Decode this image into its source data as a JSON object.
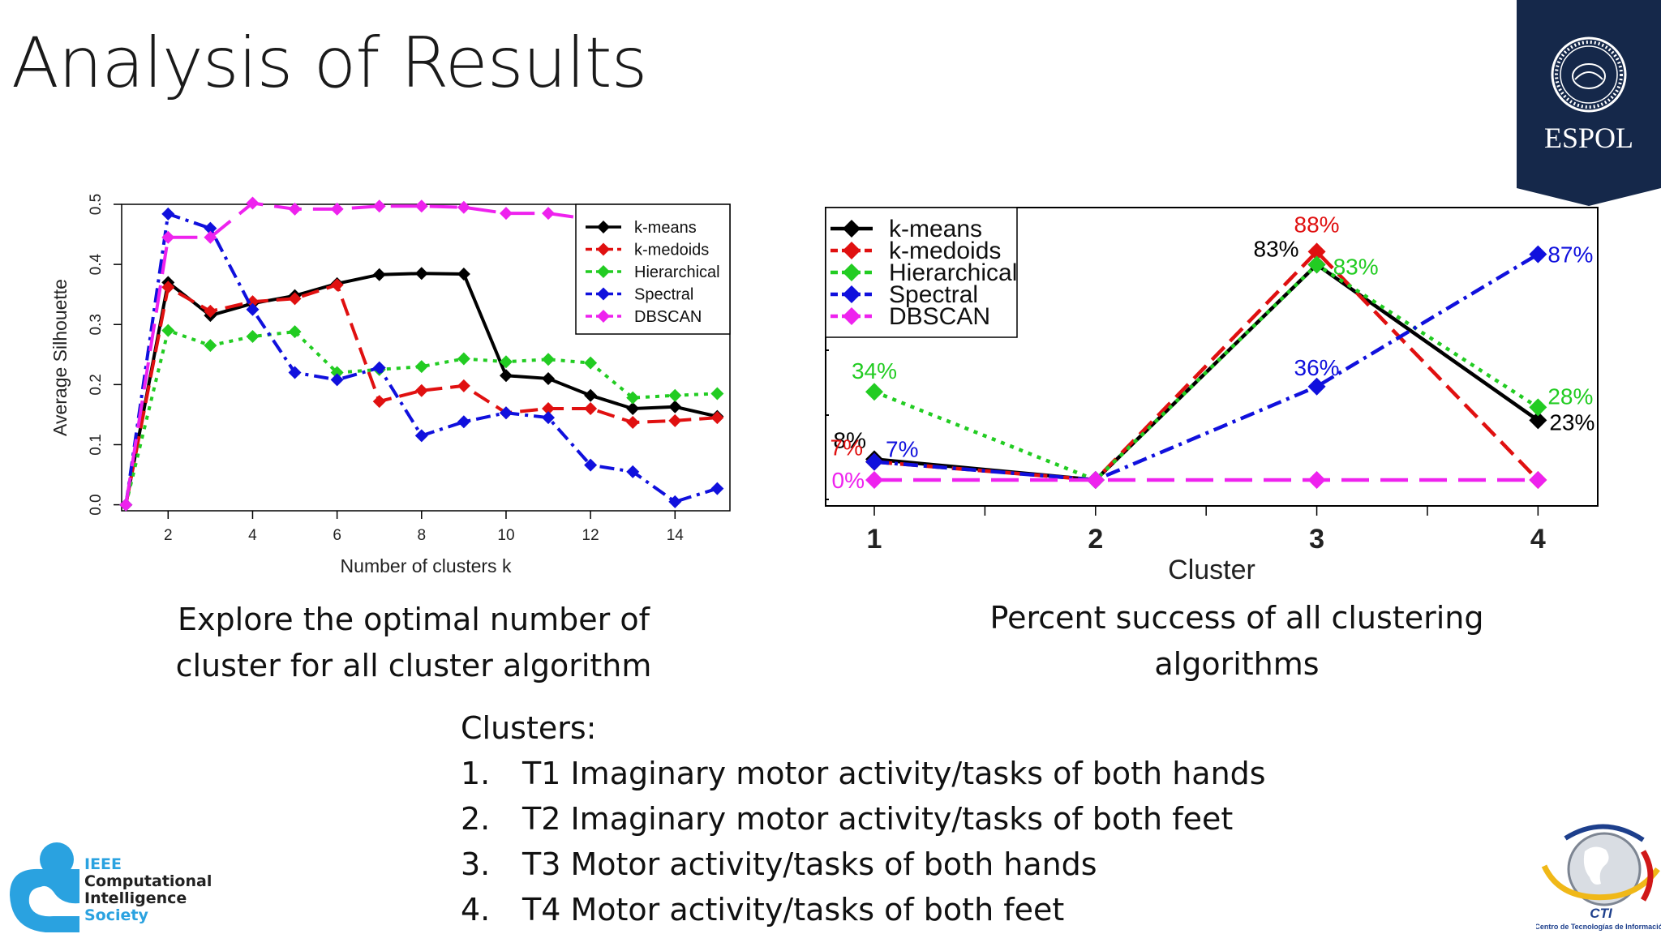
{
  "slide": {
    "title": "Analysis of Results",
    "caption_left": [
      "Explore the optimal number of",
      "cluster for all cluster algorithm"
    ],
    "caption_right": [
      "Percent success of all clustering",
      "algorithms"
    ],
    "clusters_heading": "Clusters:",
    "clusters": [
      {
        "num": "1.",
        "text": "T1 Imaginary motor activity/tasks of both hands"
      },
      {
        "num": "2.",
        "text": "T2 Imaginary motor activity/tasks of both feet"
      },
      {
        "num": "3.",
        "text": "T3 Motor activity/tasks of both hands"
      },
      {
        "num": "4.",
        "text": "T4 Motor activity/tasks of both feet"
      }
    ],
    "logos": {
      "espol": "ESPOL",
      "ieee": [
        "IEEE",
        "Computational",
        "Intelligence",
        "Society"
      ],
      "cti": "CTI",
      "cti_sub": "Centro de Tecnologías de Información"
    },
    "colors": {
      "espol_navy": "#15284a",
      "ieee_blue": "#2aa2e0"
    }
  },
  "chart_data": [
    {
      "type": "line",
      "xlabel": "Number of clusters k",
      "ylabel": "Average Silhouette",
      "xlim": [
        0.9,
        15.3
      ],
      "ylim": [
        -0.01,
        0.5
      ],
      "xticks": [
        2,
        4,
        6,
        8,
        10,
        12,
        14
      ],
      "yticks": [
        0.0,
        0.1,
        0.2,
        0.3,
        0.4,
        0.5
      ],
      "grid": false,
      "legend": "top-right",
      "x": [
        1,
        2,
        3,
        4,
        5,
        6,
        7,
        8,
        9,
        10,
        11,
        12,
        13,
        14,
        15
      ],
      "series": [
        {
          "name": "k-means",
          "color": "#000000",
          "dash": "solid",
          "values": [
            0,
            0.37,
            0.315,
            0.335,
            0.348,
            0.368,
            0.383,
            0.385,
            0.384,
            0.215,
            0.21,
            0.182,
            0.16,
            0.163,
            0.147
          ]
        },
        {
          "name": "k-medoids",
          "color": "#e01010",
          "dash": "long",
          "values": [
            0,
            0.362,
            0.322,
            0.338,
            0.343,
            0.366,
            0.172,
            0.19,
            0.198,
            0.153,
            0.16,
            0.16,
            0.137,
            0.14,
            0.145
          ]
        },
        {
          "name": "Hierarchical",
          "color": "#22cc22",
          "dash": "dot",
          "values": [
            0,
            0.29,
            0.265,
            0.28,
            0.288,
            0.22,
            0.225,
            0.23,
            0.243,
            0.238,
            0.242,
            0.236,
            0.178,
            0.182,
            0.185
          ]
        },
        {
          "name": "Spectral",
          "color": "#1010dd",
          "dash": "dashdot",
          "values": [
            0,
            0.484,
            0.46,
            0.325,
            0.22,
            0.208,
            0.228,
            0.115,
            0.138,
            0.153,
            0.145,
            0.066,
            0.055,
            0.005,
            0.027
          ]
        },
        {
          "name": "DBSCAN",
          "color": "#ee22ee",
          "dash": "longdash",
          "values": [
            0,
            0.445,
            0.445,
            0.502,
            0.492,
            0.492,
            0.497,
            0.497,
            0.495,
            0.485,
            0.485,
            0.475,
            0.475,
            0.475,
            0.475
          ]
        }
      ]
    },
    {
      "type": "line",
      "xlabel": "Cluster",
      "ylabel": "",
      "xlim": [
        0.78,
        4.27
      ],
      "ylim": [
        -0.1,
        1.05
      ],
      "xticks": [
        1,
        2,
        3,
        4
      ],
      "grid": false,
      "legend": "top-left",
      "x": [
        1,
        2,
        3,
        4
      ],
      "series": [
        {
          "name": "k-means",
          "color": "#000000",
          "dash": "solid",
          "values": [
            0.08,
            0,
            0.83,
            0.23
          ],
          "labels": [
            "8%",
            "",
            "83%",
            "23%"
          ]
        },
        {
          "name": "k-medoids",
          "color": "#e01010",
          "dash": "long",
          "values": [
            0.07,
            0,
            0.88,
            0
          ],
          "labels": [
            "7%",
            "",
            "88%",
            ""
          ]
        },
        {
          "name": "Hierarchical",
          "color": "#22cc22",
          "dash": "dot",
          "values": [
            0.34,
            0,
            0.83,
            0.28
          ],
          "labels": [
            "34%",
            "",
            "83%",
            "28%"
          ]
        },
        {
          "name": "Spectral",
          "color": "#1010dd",
          "dash": "dashdot",
          "values": [
            0.07,
            0,
            0.36,
            0.87
          ],
          "labels": [
            "7%",
            "",
            "36%",
            "87%"
          ]
        },
        {
          "name": "DBSCAN",
          "color": "#ee22ee",
          "dash": "longdash",
          "values": [
            0,
            0,
            0,
            0
          ],
          "labels": [
            "0%",
            "",
            "",
            ""
          ]
        }
      ]
    }
  ]
}
